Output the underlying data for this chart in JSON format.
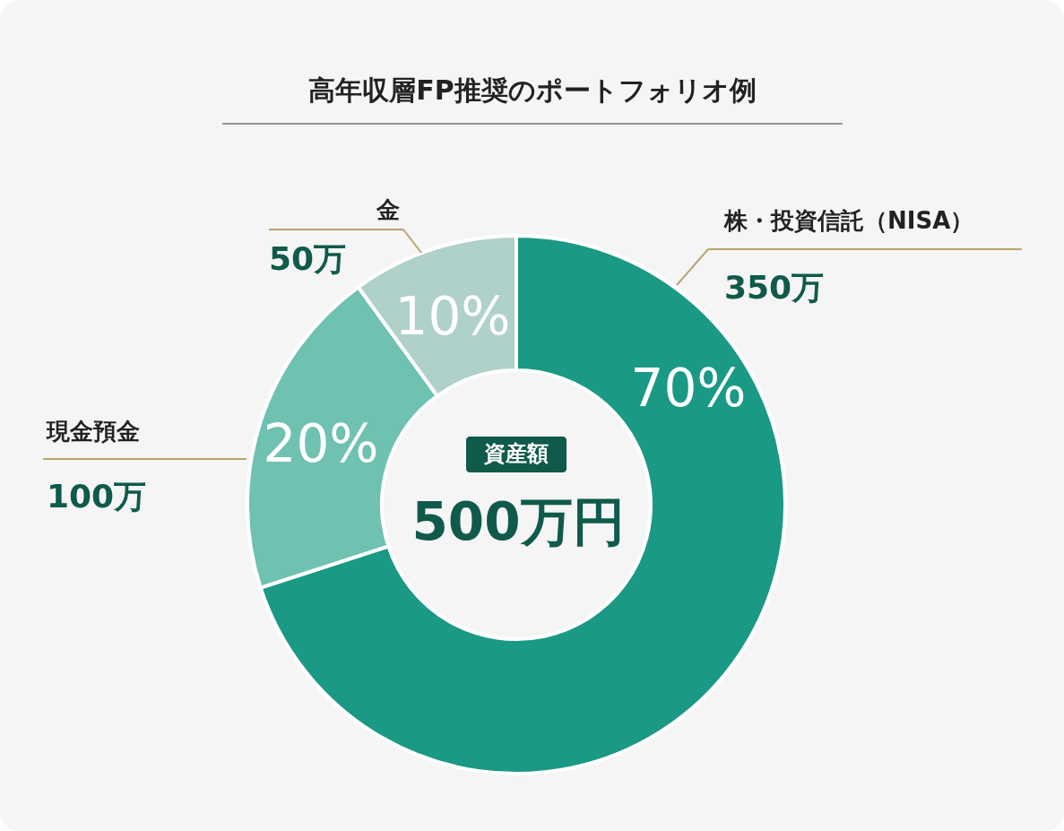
{
  "chart_data": {
    "type": "donut",
    "title": "高年収層FP推奨のポートフォリオ例",
    "categories": [
      "株・投資信託（NISA）",
      "現金預金",
      "金"
    ],
    "values": [
      350,
      100,
      50
    ],
    "value_labels": [
      "350万",
      "100万",
      "50万"
    ],
    "colors": [
      "#1a9985",
      "#6fc1b2",
      "#afd1c9"
    ],
    "annotations": [
      "70%",
      "20%",
      "10%",
      "資産額",
      "500万円"
    ]
  }
}
